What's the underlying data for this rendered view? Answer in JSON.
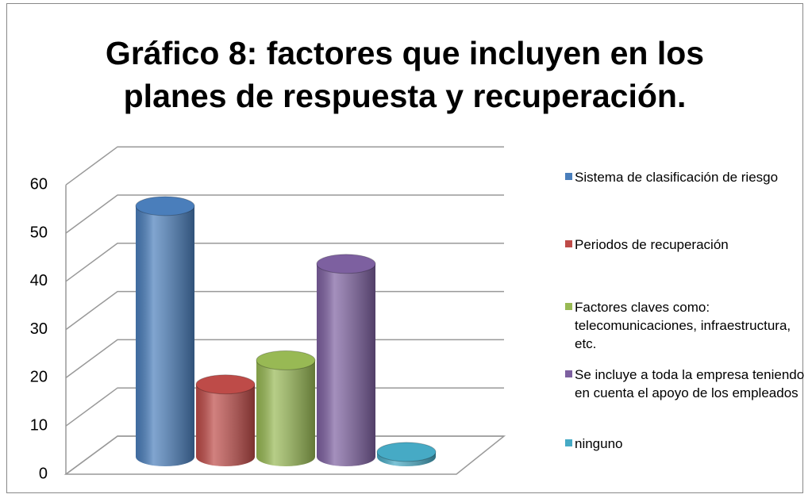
{
  "chart_data": {
    "type": "bar3d",
    "title": "Gráfico 8: factores que incluyen en los planes de respuesta y recuperación.",
    "categories": [
      "Sistema de clasificación de riesgo",
      "Periodos de recuperación",
      "Factores claves como: telecomunicaciones, infraestructura, etc.",
      "Se incluye a toda la empresa teniendo en cuenta el apoyo de los empleados",
      "ninguno"
    ],
    "values": [
      52,
      15,
      20,
      40,
      1
    ],
    "colors": [
      "#4a7ebb",
      "#be4b48",
      "#98b954",
      "#7d60a0",
      "#46aac5"
    ],
    "ylim": [
      0,
      60
    ],
    "yticks": [
      0,
      10,
      20,
      30,
      40,
      50,
      60
    ],
    "grid": true,
    "legend": "right"
  }
}
